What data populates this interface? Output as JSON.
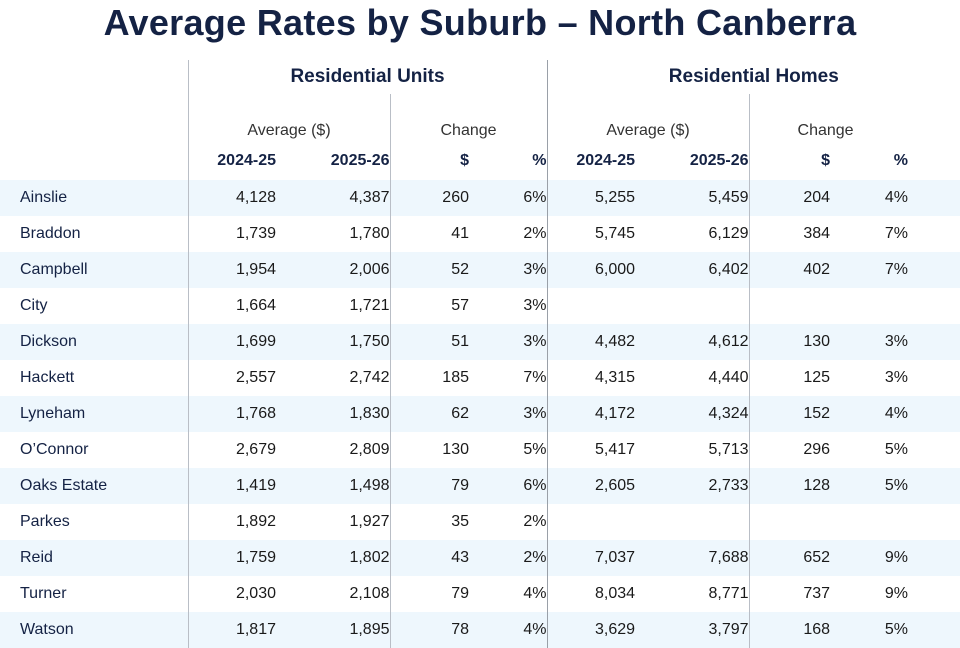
{
  "title": "Average Rates by Suburb – North Canberra",
  "groups": {
    "units": "Residential Units",
    "homes": "Residential Homes"
  },
  "subgroups": {
    "average": "Average ($)",
    "change": "Change"
  },
  "columns": {
    "y1": "2024-25",
    "y2": "2025-26",
    "dollar": "$",
    "pct": "%"
  },
  "rows": [
    {
      "suburb": "Ainslie",
      "u1": "4,128",
      "u2": "4,387",
      "ud": "260",
      "up": "6%",
      "h1": "5,255",
      "h2": "5,459",
      "hd": "204",
      "hp": "4%"
    },
    {
      "suburb": "Braddon",
      "u1": "1,739",
      "u2": "1,780",
      "ud": "41",
      "up": "2%",
      "h1": "5,745",
      "h2": "6,129",
      "hd": "384",
      "hp": "7%"
    },
    {
      "suburb": "Campbell",
      "u1": "1,954",
      "u2": "2,006",
      "ud": "52",
      "up": "3%",
      "h1": "6,000",
      "h2": "6,402",
      "hd": "402",
      "hp": "7%"
    },
    {
      "suburb": "City",
      "u1": "1,664",
      "u2": "1,721",
      "ud": "57",
      "up": "3%",
      "h1": "",
      "h2": "",
      "hd": "",
      "hp": ""
    },
    {
      "suburb": "Dickson",
      "u1": "1,699",
      "u2": "1,750",
      "ud": "51",
      "up": "3%",
      "h1": "4,482",
      "h2": "4,612",
      "hd": "130",
      "hp": "3%"
    },
    {
      "suburb": "Hackett",
      "u1": "2,557",
      "u2": "2,742",
      "ud": "185",
      "up": "7%",
      "h1": "4,315",
      "h2": "4,440",
      "hd": "125",
      "hp": "3%"
    },
    {
      "suburb": "Lyneham",
      "u1": "1,768",
      "u2": "1,830",
      "ud": "62",
      "up": "3%",
      "h1": "4,172",
      "h2": "4,324",
      "hd": "152",
      "hp": "4%"
    },
    {
      "suburb": "O’Connor",
      "u1": "2,679",
      "u2": "2,809",
      "ud": "130",
      "up": "5%",
      "h1": "5,417",
      "h2": "5,713",
      "hd": "296",
      "hp": "5%"
    },
    {
      "suburb": "Oaks Estate",
      "u1": "1,419",
      "u2": "1,498",
      "ud": "79",
      "up": "6%",
      "h1": "2,605",
      "h2": "2,733",
      "hd": "128",
      "hp": "5%"
    },
    {
      "suburb": "Parkes",
      "u1": "1,892",
      "u2": "1,927",
      "ud": "35",
      "up": "2%",
      "h1": "",
      "h2": "",
      "hd": "",
      "hp": ""
    },
    {
      "suburb": "Reid",
      "u1": "1,759",
      "u2": "1,802",
      "ud": "43",
      "up": "2%",
      "h1": "7,037",
      "h2": "7,688",
      "hd": "652",
      "hp": "9%"
    },
    {
      "suburb": "Turner",
      "u1": "2,030",
      "u2": "2,108",
      "ud": "79",
      "up": "4%",
      "h1": "8,034",
      "h2": "8,771",
      "hd": "737",
      "hp": "9%"
    },
    {
      "suburb": "Watson",
      "u1": "1,817",
      "u2": "1,895",
      "ud": "78",
      "up": "4%",
      "h1": "3,629",
      "h2": "3,797",
      "hd": "168",
      "hp": "5%"
    }
  ]
}
